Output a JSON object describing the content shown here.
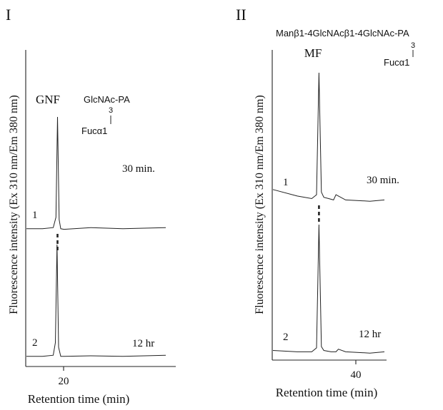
{
  "chart_data": [
    {
      "type": "line",
      "panel_label": "I",
      "xlabel": "Retention time (min)",
      "ylabel": "Fluorescence  intensity (Ex 310 nm/Em 380 nm)",
      "x_ticks": [
        20
      ],
      "peak_label": "GNF",
      "structure": {
        "main": "GlcNAc-PA",
        "position": "3",
        "branch": "Fucα1"
      },
      "series": [
        {
          "trace_label": "1",
          "annotation": "30 min.",
          "x": [
            17.0,
            18.5,
            19.5,
            19.75,
            19.9,
            20.05,
            20.2,
            20.5,
            23.0,
            26.0,
            30.0
          ],
          "y": [
            0.02,
            0.02,
            0.03,
            0.12,
            1.0,
            0.1,
            0.02,
            0.015,
            0.03,
            0.02,
            0.03
          ]
        },
        {
          "trace_label": "2",
          "annotation": "12 hr",
          "x": [
            17.0,
            18.5,
            19.5,
            19.7,
            19.85,
            20.0,
            20.2,
            20.5,
            23.0,
            26.0,
            30.0
          ],
          "y": [
            0.02,
            0.02,
            0.03,
            0.14,
            1.0,
            0.1,
            0.02,
            0.02,
            0.025,
            0.02,
            0.03
          ]
        }
      ]
    },
    {
      "type": "line",
      "panel_label": "II",
      "xlabel": "Retention time (min)",
      "ylabel": "Fluorescence  intensity (Ex 310 nm/Em 380 nm)",
      "x_ticks": [
        40
      ],
      "peak_label": "MF",
      "structure": {
        "main": "Manβ1-4GlcNAcβ1-4GlcNAc-PA",
        "position": "3",
        "branch": "Fucα1"
      },
      "series": [
        {
          "trace_label": "1",
          "annotation": "30 min.",
          "x": [
            25.0,
            30.0,
            33.0,
            34.0,
            34.5,
            35.0,
            35.5,
            36.5,
            37.5,
            38.0,
            40.0,
            45.0,
            48.0
          ],
          "y": [
            0.1,
            0.05,
            0.03,
            0.06,
            1.0,
            0.08,
            0.04,
            0.03,
            0.02,
            0.06,
            0.02,
            0.01,
            0.02
          ]
        },
        {
          "trace_label": "2",
          "annotation": "12 hr",
          "x": [
            25.0,
            30.0,
            33.0,
            34.0,
            34.5,
            35.0,
            35.5,
            37.0,
            38.0,
            38.5,
            40.0,
            45.0,
            48.0
          ],
          "y": [
            0.03,
            0.02,
            0.02,
            0.05,
            1.0,
            0.06,
            0.03,
            0.02,
            0.02,
            0.04,
            0.02,
            0.01,
            0.02
          ]
        }
      ]
    }
  ]
}
